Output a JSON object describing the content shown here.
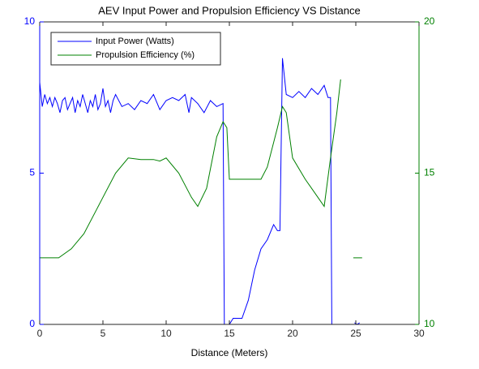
{
  "chart_data": {
    "type": "line",
    "title": "AEV Input Power and Propulsion Efficiency VS Distance",
    "xlabel": "Distance (Meters)",
    "xlim": [
      0,
      30
    ],
    "xticks": [
      0,
      5,
      10,
      15,
      20,
      25,
      30
    ],
    "ylim": [
      0,
      10
    ],
    "yticks": [
      0,
      5,
      10
    ],
    "y2lim": [
      10,
      20
    ],
    "y2ticks": [
      10,
      15,
      20
    ],
    "legend": "upper left",
    "series": [
      {
        "name": "Input Power (Watts)",
        "color": "#0000ff",
        "axis": "y",
        "x": [
          0,
          0.2,
          0.4,
          0.6,
          0.8,
          1,
          1.2,
          1.4,
          1.6,
          1.8,
          2,
          2.2,
          2.4,
          2.6,
          2.8,
          3,
          3.2,
          3.4,
          3.6,
          3.8,
          4,
          4.2,
          4.4,
          4.6,
          4.8,
          5,
          5.2,
          5.4,
          5.6,
          5.8,
          6,
          6.5,
          7,
          7.5,
          8,
          8.5,
          9,
          9.5,
          10,
          10.5,
          11,
          11.5,
          11.8,
          12,
          12.5,
          13,
          13.5,
          14,
          14.5,
          14.6,
          15,
          15.3,
          16,
          16.5,
          17,
          17.5,
          18,
          18.5,
          18.8,
          19,
          19.2,
          19.5,
          20,
          20.5,
          21,
          21.5,
          22,
          22.5,
          22.8,
          23,
          23.1,
          24,
          24.9,
          25.1,
          25.3
        ],
        "values": [
          8.0,
          7.2,
          7.6,
          7.3,
          7.5,
          7.2,
          7.5,
          7.3,
          7.0,
          7.4,
          7.5,
          7.1,
          7.3,
          7.5,
          7.0,
          7.4,
          7.2,
          7.6,
          7.3,
          7.0,
          7.4,
          7.2,
          7.6,
          7.1,
          7.3,
          7.8,
          7.2,
          7.4,
          7.0,
          7.4,
          7.6,
          7.2,
          7.3,
          7.1,
          7.4,
          7.3,
          7.6,
          7.1,
          7.4,
          7.5,
          7.4,
          7.6,
          7.0,
          7.5,
          7.3,
          7.0,
          7.4,
          7.2,
          7.3,
          0,
          0,
          0.2,
          0.2,
          0.8,
          1.8,
          2.5,
          2.8,
          3.3,
          3.1,
          3.1,
          8.8,
          7.6,
          7.5,
          7.7,
          7.5,
          7.8,
          7.6,
          7.9,
          7.5,
          7.5,
          0,
          null,
          0.05,
          0,
          0.05
        ]
      },
      {
        "name": "Propulsion Efficiency (%)",
        "color": "#008000",
        "axis": "y2",
        "x": [
          0,
          1.5,
          2.5,
          3.5,
          4.5,
          5,
          6,
          7,
          8,
          9,
          9.5,
          10,
          11,
          12,
          12.5,
          13.2,
          14,
          14.5,
          14.8,
          15,
          17.5,
          18,
          18.8,
          19.2,
          19.5,
          20,
          21,
          22,
          22.5,
          23,
          23.5,
          23.8,
          24.3,
          24.8,
          25.5
        ],
        "values": [
          12.2,
          12.2,
          12.5,
          13.0,
          13.8,
          14.2,
          15.0,
          15.5,
          15.45,
          15.45,
          15.4,
          15.5,
          15.0,
          14.2,
          13.9,
          14.5,
          16.2,
          16.7,
          16.5,
          14.8,
          14.8,
          15.2,
          16.5,
          17.2,
          17.0,
          15.5,
          14.8,
          14.2,
          13.9,
          15.5,
          17.0,
          18.1,
          null,
          12.2,
          12.2
        ]
      }
    ]
  }
}
